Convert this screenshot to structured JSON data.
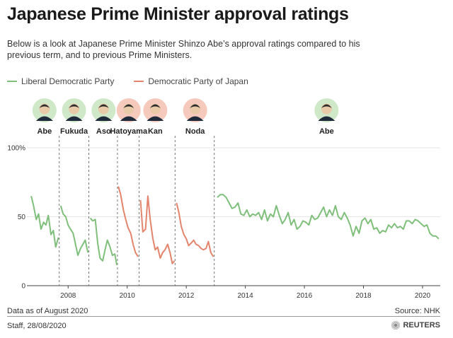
{
  "header": {
    "title": "Japanese Prime Minister approval ratings",
    "subtitle": "Below is a look at Japanese Prime Minister Shinzo Abe’s approval ratings compared to his previous term, and to previous Prime Ministers."
  },
  "footer": {
    "data_note": "Data as of August 2020",
    "source": "Source: NHK",
    "credit": "Staff,  28/08/2020",
    "logo_text": "REUTERS"
  },
  "chart_data": {
    "type": "line",
    "title": "Japanese Prime Minister approval ratings",
    "xlabel": "",
    "ylabel": "",
    "xlim": [
      2006.7,
      2020.6
    ],
    "ylim": [
      0,
      100
    ],
    "grid": true,
    "legend_position": "top-left",
    "yticks": [
      0,
      50,
      100
    ],
    "ytick_labels": [
      "0",
      "50",
      "100%"
    ],
    "xticks": [
      2008,
      2010,
      2012,
      2014,
      2016,
      2018,
      2020
    ],
    "xtick_labels": [
      "2008",
      "2010",
      "2012",
      "2014",
      "2016",
      "2018",
      "2020"
    ],
    "colors": {
      "ldp": "#7fbf7b",
      "dpj": "#e3846c",
      "grid": "#e6e6e6",
      "divider": "#555555"
    },
    "legend": [
      {
        "name": "Liberal Democratic Party",
        "color": "#7fbf7b"
      },
      {
        "name": "Democratic Party of Japan",
        "color": "#e3846c"
      }
    ],
    "terms_boundaries": [
      2007.7,
      2008.7,
      2009.67,
      2010.4,
      2011.62,
      2012.95
    ],
    "prime_ministers": [
      {
        "name": "Abe",
        "party": "ldp",
        "x": 2007.2,
        "icon": "portrait-icon"
      },
      {
        "name": "Fukuda",
        "party": "ldp",
        "x": 2008.2,
        "icon": "portrait-icon"
      },
      {
        "name": "Aso",
        "party": "ldp",
        "x": 2009.2,
        "icon": "portrait-icon"
      },
      {
        "name": "Hatoyama",
        "party": "dpj",
        "x": 2010.05,
        "icon": "portrait-icon"
      },
      {
        "name": "Kan",
        "party": "dpj",
        "x": 2010.95,
        "icon": "portrait-icon"
      },
      {
        "name": "Noda",
        "party": "dpj",
        "x": 2012.3,
        "icon": "portrait-icon"
      },
      {
        "name": "Abe",
        "party": "ldp",
        "x": 2016.75,
        "icon": "portrait-icon"
      }
    ],
    "series": [
      {
        "name": "Abe",
        "party": "ldp",
        "x": [
          2006.75,
          2006.83,
          2006.92,
          2007.0,
          2007.08,
          2007.17,
          2007.25,
          2007.33,
          2007.42,
          2007.5,
          2007.58,
          2007.67
        ],
        "y": [
          65,
          58,
          48,
          52,
          41,
          46,
          44,
          51,
          37,
          40,
          28,
          35
        ]
      },
      {
        "name": "Fukuda",
        "party": "ldp",
        "x": [
          2007.75,
          2007.83,
          2007.92,
          2008.0,
          2008.08,
          2008.17,
          2008.25,
          2008.33,
          2008.42,
          2008.5,
          2008.58,
          2008.67
        ],
        "y": [
          58,
          52,
          50,
          44,
          41,
          38,
          30,
          22,
          27,
          30,
          33,
          24
        ]
      },
      {
        "name": "Aso",
        "party": "ldp",
        "x": [
          2008.75,
          2008.83,
          2008.92,
          2009.0,
          2009.08,
          2009.17,
          2009.25,
          2009.33,
          2009.42,
          2009.5,
          2009.58,
          2009.65
        ],
        "y": [
          49,
          47,
          48,
          31,
          20,
          18,
          26,
          33,
          28,
          22,
          23,
          15
        ]
      },
      {
        "name": "Hatoyama",
        "party": "dpj",
        "x": [
          2009.7,
          2009.78,
          2009.87,
          2009.95,
          2010.03,
          2010.12,
          2010.2,
          2010.28,
          2010.37
        ],
        "y": [
          72,
          66,
          55,
          48,
          42,
          38,
          30,
          24,
          21
        ]
      },
      {
        "name": "Kan",
        "party": "dpj",
        "x": [
          2010.45,
          2010.53,
          2010.62,
          2010.7,
          2010.78,
          2010.87,
          2010.95,
          2011.03,
          2011.12,
          2011.2,
          2011.28,
          2011.37,
          2011.45,
          2011.53,
          2011.6
        ],
        "y": [
          62,
          39,
          41,
          65,
          48,
          34,
          26,
          28,
          20,
          24,
          26,
          30,
          24,
          16,
          18
        ]
      },
      {
        "name": "Noda",
        "party": "dpj",
        "x": [
          2011.67,
          2011.75,
          2011.83,
          2011.92,
          2012.0,
          2012.08,
          2012.17,
          2012.25,
          2012.33,
          2012.42,
          2012.5,
          2012.58,
          2012.67,
          2012.75,
          2012.83,
          2012.92
        ],
        "y": [
          60,
          53,
          43,
          37,
          34,
          29,
          31,
          33,
          30,
          29,
          27,
          26,
          27,
          32,
          24,
          21
        ]
      },
      {
        "name": "Abe",
        "party": "ldp",
        "x": [
          2013.05,
          2013.15,
          2013.25,
          2013.35,
          2013.45,
          2013.55,
          2013.65,
          2013.75,
          2013.85,
          2013.95,
          2014.05,
          2014.15,
          2014.25,
          2014.35,
          2014.45,
          2014.55,
          2014.65,
          2014.75,
          2014.85,
          2014.95,
          2015.05,
          2015.15,
          2015.25,
          2015.35,
          2015.45,
          2015.55,
          2015.65,
          2015.75,
          2015.85,
          2015.95,
          2016.05,
          2016.15,
          2016.25,
          2016.35,
          2016.45,
          2016.55,
          2016.65,
          2016.75,
          2016.85,
          2016.95,
          2017.05,
          2017.15,
          2017.25,
          2017.35,
          2017.45,
          2017.55,
          2017.65,
          2017.75,
          2017.85,
          2017.95,
          2018.05,
          2018.15,
          2018.25,
          2018.35,
          2018.45,
          2018.55,
          2018.65,
          2018.75,
          2018.85,
          2018.95,
          2019.05,
          2019.15,
          2019.25,
          2019.35,
          2019.45,
          2019.55,
          2019.65,
          2019.75,
          2019.85,
          2019.95,
          2020.05,
          2020.15,
          2020.25,
          2020.35,
          2020.45,
          2020.55
        ],
        "y": [
          64,
          66,
          66,
          64,
          60,
          56,
          57,
          60,
          52,
          51,
          55,
          50,
          52,
          51,
          53,
          48,
          55,
          47,
          52,
          50,
          58,
          51,
          45,
          48,
          53,
          44,
          48,
          41,
          43,
          47,
          46,
          44,
          51,
          48,
          49,
          53,
          57,
          50,
          55,
          51,
          58,
          50,
          48,
          53,
          49,
          44,
          36,
          43,
          38,
          47,
          49,
          45,
          48,
          41,
          42,
          38,
          40,
          39,
          44,
          42,
          45,
          42,
          43,
          41,
          47,
          47,
          45,
          48,
          47,
          45,
          43,
          44,
          38,
          36,
          36,
          34
        ]
      }
    ]
  }
}
